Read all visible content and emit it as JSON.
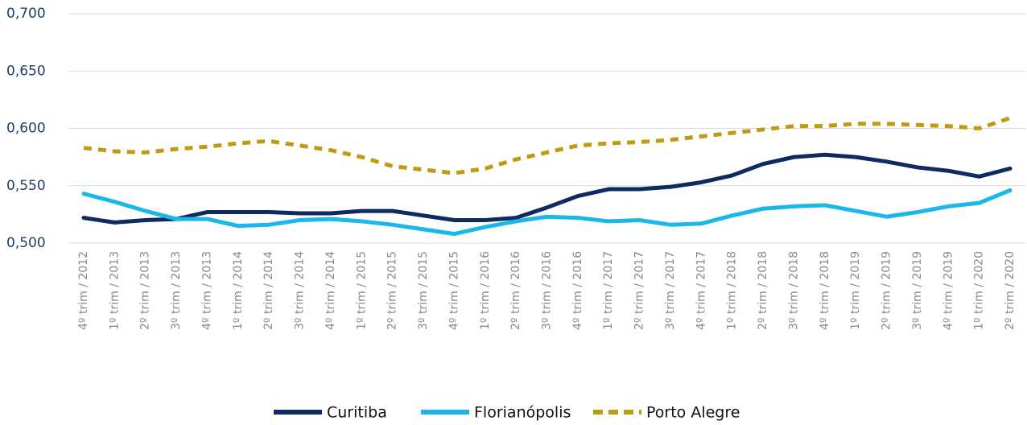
{
  "chart_data": {
    "type": "line",
    "categories": [
      "4º trim / 2012",
      "1º trim / 2013",
      "2º trim / 2013",
      "3º trim / 2013",
      "4º trim / 2013",
      "1º trim / 2014",
      "2º trim / 2014",
      "3º trim / 2014",
      "4º trim / 2014",
      "1º trim / 2015",
      "2º trim / 2015",
      "3º trim / 2015",
      "4º trim / 2015",
      "1º trim / 2016",
      "2º trim / 2016",
      "3º trim / 2016",
      "4º trim / 2016",
      "1º trim / 2017",
      "2º trim / 2017",
      "3º trim / 2017",
      "4º trim / 2017",
      "1º trim / 2018",
      "2º trim / 2018",
      "3º trim / 2018",
      "4º trim / 2018",
      "1º trim / 2019",
      "2º trim / 2019",
      "3º trim / 2019",
      "4º trim / 2019",
      "1º trim / 2020",
      "2º trim / 2020"
    ],
    "series": [
      {
        "name": "Curitiba",
        "color": "#0f2a5f",
        "dashed": false,
        "values": [
          0.522,
          0.518,
          0.52,
          0.521,
          0.527,
          0.527,
          0.527,
          0.526,
          0.526,
          0.528,
          0.528,
          0.524,
          0.52,
          0.52,
          0.522,
          0.531,
          0.541,
          0.547,
          0.547,
          0.549,
          0.553,
          0.559,
          0.569,
          0.575,
          0.577,
          0.575,
          0.571,
          0.566,
          0.563,
          0.558,
          0.565
        ]
      },
      {
        "name": "Florianópolis",
        "color": "#1ab8ea",
        "dashed": false,
        "values": [
          0.543,
          0.536,
          0.528,
          0.521,
          0.521,
          0.515,
          0.516,
          0.52,
          0.521,
          0.519,
          0.516,
          0.512,
          0.508,
          0.514,
          0.519,
          0.523,
          0.522,
          0.519,
          0.52,
          0.516,
          0.517,
          0.524,
          0.53,
          0.532,
          0.533,
          0.528,
          0.523,
          0.527,
          0.532,
          0.535,
          0.546
        ]
      },
      {
        "name": "Porto Alegre",
        "color": "#bf9b13",
        "dashed": true,
        "values": [
          0.583,
          0.58,
          0.579,
          0.582,
          0.584,
          0.587,
          0.589,
          0.585,
          0.581,
          0.575,
          0.567,
          0.564,
          0.561,
          0.565,
          0.573,
          0.579,
          0.585,
          0.587,
          0.588,
          0.59,
          0.593,
          0.596,
          0.599,
          0.602,
          0.602,
          0.604,
          0.604,
          0.603,
          0.602,
          0.6,
          0.609
        ]
      }
    ],
    "ylim": [
      0.5,
      0.7
    ],
    "yticks": [
      {
        "value": 0.5,
        "label": "0,500"
      },
      {
        "value": 0.55,
        "label": "0,550"
      },
      {
        "value": 0.6,
        "label": "0,600"
      },
      {
        "value": 0.65,
        "label": "0,650"
      },
      {
        "value": 0.7,
        "label": "0,700"
      }
    ],
    "grid": true,
    "legend": "bottom"
  }
}
